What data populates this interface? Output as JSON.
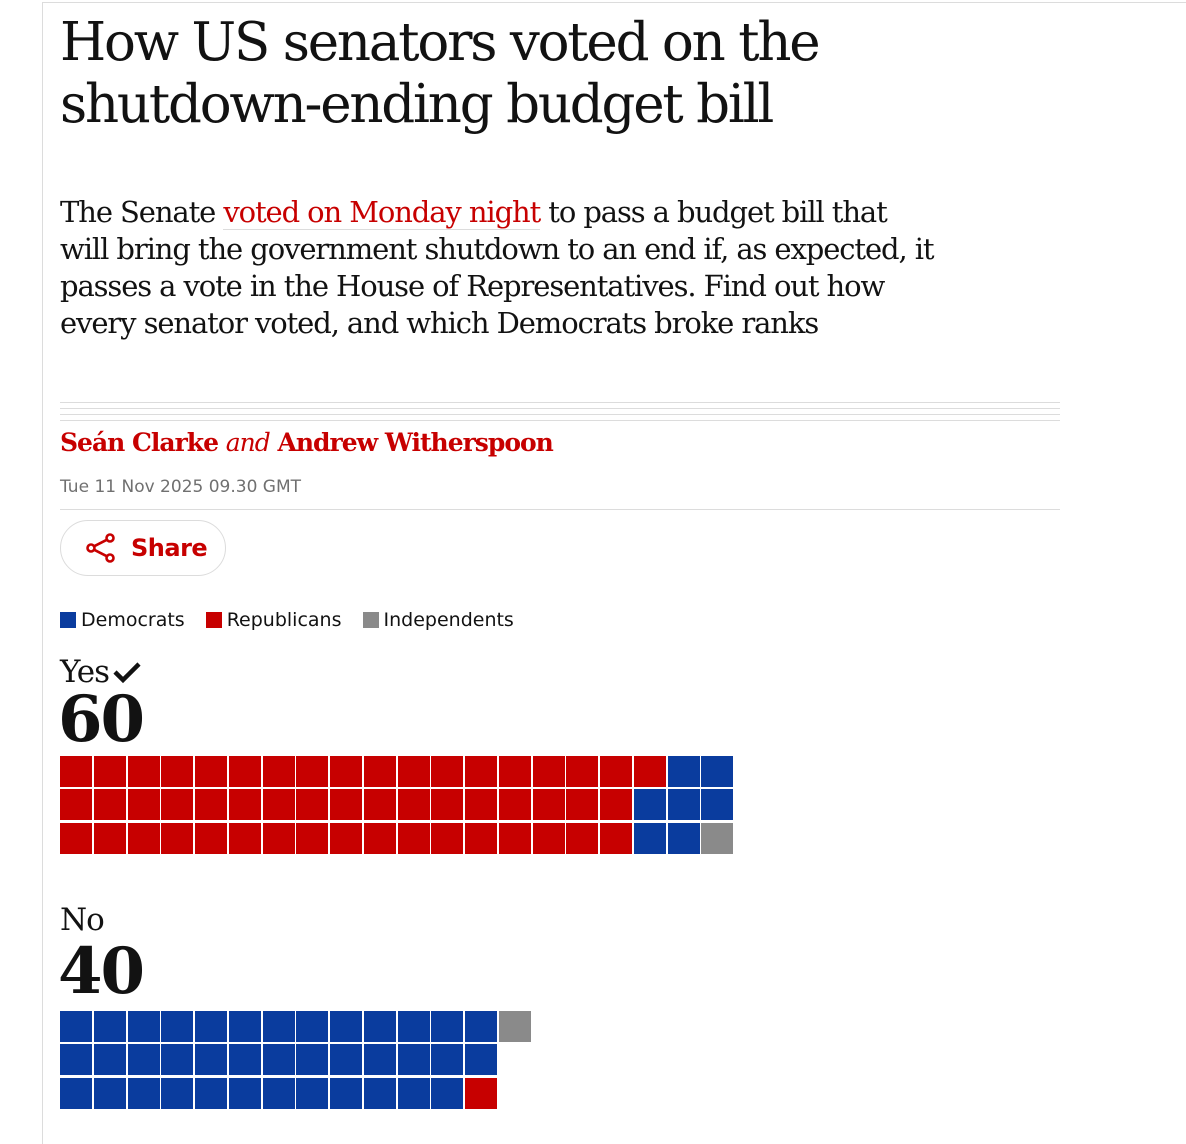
{
  "article": {
    "headline": "How US senators voted on the shutdown-ending budget bill",
    "standfirst_before": "The Senate ",
    "standfirst_link": "voted on Monday night",
    "standfirst_after": " to pass a budget bill that will bring the government shutdown to an end if, as expected, it passes a vote in the House of Representatives. Find out how every senator voted, and which Democrats broke ranks",
    "author1": "Seán Clarke",
    "byline_and": "and",
    "author2": "Andrew Witherspoon",
    "date": "Tue 11 Nov 2025 09.30 GMT",
    "share_label": "Share"
  },
  "legend": {
    "democrats": "Democrats",
    "republicans": "Republicans",
    "independents": "Independents"
  },
  "colors": {
    "democrat": "#0a3c9e",
    "republican": "#c70000",
    "independent": "#8a8a8a",
    "accent": "#c70000"
  },
  "chart_data": {
    "type": "waffle",
    "units": "senators",
    "legend": [
      "Democrats",
      "Republicans",
      "Independents"
    ],
    "groups": [
      {
        "label": "Yes",
        "count": "60",
        "passed": true,
        "cells": [
          {
            "column": 0,
            "parties": [
              "R",
              "R",
              "R"
            ]
          },
          {
            "column": 1,
            "parties": [
              "R",
              "R",
              "R"
            ]
          },
          {
            "column": 2,
            "parties": [
              "R",
              "R",
              "R"
            ]
          },
          {
            "column": 3,
            "parties": [
              "R",
              "R",
              "R"
            ]
          },
          {
            "column": 4,
            "parties": [
              "R",
              "R",
              "R"
            ]
          },
          {
            "column": 5,
            "parties": [
              "R",
              "R",
              "R"
            ]
          },
          {
            "column": 6,
            "parties": [
              "R",
              "R",
              "R"
            ]
          },
          {
            "column": 7,
            "parties": [
              "R",
              "R",
              "R"
            ]
          },
          {
            "column": 8,
            "parties": [
              "R",
              "R",
              "R"
            ]
          },
          {
            "column": 9,
            "parties": [
              "R",
              "R",
              "R"
            ]
          },
          {
            "column": 10,
            "parties": [
              "R",
              "R",
              "R"
            ]
          },
          {
            "column": 11,
            "parties": [
              "R",
              "R",
              "R"
            ]
          },
          {
            "column": 12,
            "parties": [
              "R",
              "R",
              "R"
            ]
          },
          {
            "column": 13,
            "parties": [
              "R",
              "R",
              "R"
            ]
          },
          {
            "column": 14,
            "parties": [
              "R",
              "R",
              "R"
            ]
          },
          {
            "column": 15,
            "parties": [
              "R",
              "R",
              "R"
            ]
          },
          {
            "column": 16,
            "parties": [
              "R",
              "R",
              "R"
            ]
          },
          {
            "column": 17,
            "parties": [
              "R",
              "D",
              "D"
            ]
          },
          {
            "column": 18,
            "parties": [
              "D",
              "D",
              "D"
            ]
          },
          {
            "column": 19,
            "parties": [
              "D",
              "D",
              "I"
            ]
          }
        ]
      },
      {
        "label": "No",
        "count": "40",
        "passed": false,
        "cells": [
          {
            "column": 0,
            "parties": [
              "D",
              "D",
              "D"
            ]
          },
          {
            "column": 1,
            "parties": [
              "D",
              "D",
              "D"
            ]
          },
          {
            "column": 2,
            "parties": [
              "D",
              "D",
              "D"
            ]
          },
          {
            "column": 3,
            "parties": [
              "D",
              "D",
              "D"
            ]
          },
          {
            "column": 4,
            "parties": [
              "D",
              "D",
              "D"
            ]
          },
          {
            "column": 5,
            "parties": [
              "D",
              "D",
              "D"
            ]
          },
          {
            "column": 6,
            "parties": [
              "D",
              "D",
              "D"
            ]
          },
          {
            "column": 7,
            "parties": [
              "D",
              "D",
              "D"
            ]
          },
          {
            "column": 8,
            "parties": [
              "D",
              "D",
              "D"
            ]
          },
          {
            "column": 9,
            "parties": [
              "D",
              "D",
              "D"
            ]
          },
          {
            "column": 10,
            "parties": [
              "D",
              "D",
              "D"
            ]
          },
          {
            "column": 11,
            "parties": [
              "D",
              "D",
              "D"
            ]
          },
          {
            "column": 12,
            "parties": [
              "D",
              "D",
              "R"
            ]
          },
          {
            "column": 13,
            "parties": [
              "I"
            ]
          }
        ]
      }
    ]
  }
}
